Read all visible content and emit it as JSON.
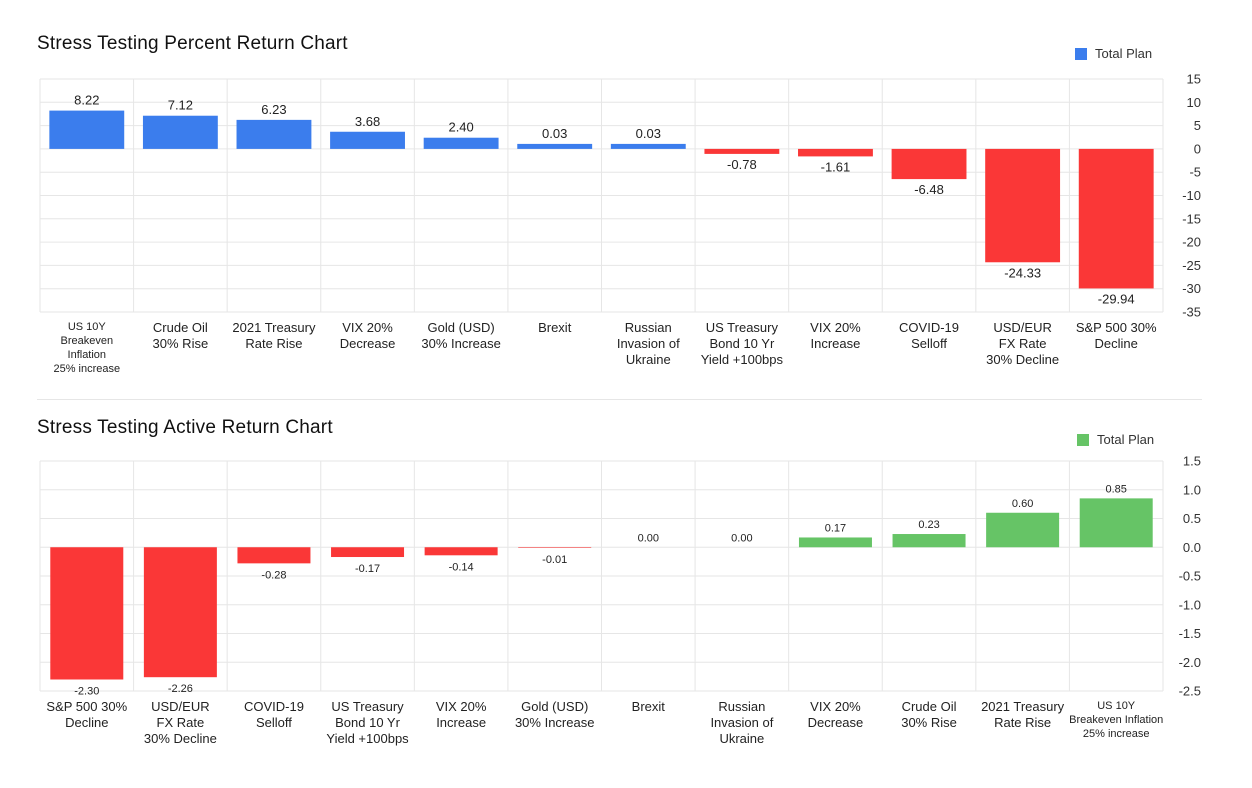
{
  "chart_data": [
    {
      "type": "bar",
      "title": "Stress Testing Percent Return Chart",
      "legend": {
        "label": "Total Plan",
        "position": "top-right"
      },
      "categories": [
        [
          "US 10Y",
          "Breakeven",
          "Inflation",
          "25% increase"
        ],
        [
          "Crude Oil",
          "30% Rise"
        ],
        [
          "2021 Treasury",
          "Rate Rise"
        ],
        [
          "VIX 20%",
          "Decrease"
        ],
        [
          "Gold (USD)",
          "30% Increase"
        ],
        [
          "Brexit"
        ],
        [
          "Russian",
          "Invasion of",
          "Ukraine"
        ],
        [
          "US Treasury",
          "Bond 10 Yr",
          "Yield +100bps"
        ],
        [
          "VIX 20%",
          "Increase"
        ],
        [
          "COVID-19",
          "Selloff"
        ],
        [
          "USD/EUR",
          "FX Rate",
          "30% Decline"
        ],
        [
          "S&P 500 30%",
          "Decline"
        ]
      ],
      "values": [
        8.22,
        7.12,
        6.23,
        3.68,
        2.4,
        0.03,
        0.03,
        -0.78,
        -1.61,
        -6.48,
        -24.33,
        -29.94
      ],
      "value_labels": [
        "8.22",
        "7.12",
        "6.23",
        "3.68",
        "2.40",
        "0.03",
        "0.03",
        "-0.78",
        "-1.61",
        "-6.48",
        "-24.33",
        "-29.94"
      ],
      "ylim": [
        -35,
        15
      ],
      "yticks": [
        15,
        10,
        5,
        0,
        -5,
        -10,
        -15,
        -20,
        -25,
        -30,
        -35
      ],
      "ytick_labels": [
        "15",
        "10",
        "5",
        "0",
        "-5",
        "-10",
        "-15",
        "-20",
        "-25",
        "-30",
        "-35"
      ],
      "y_axis_side": "right",
      "grid": true,
      "colors": {
        "positive": "#3b7ded",
        "negative": "#fa3737"
      },
      "xlabel": "",
      "ylabel": ""
    },
    {
      "type": "bar",
      "title": "Stress Testing Active Return Chart",
      "legend": {
        "label": "Total Plan",
        "position": "top-right"
      },
      "categories": [
        [
          "S&P 500 30%",
          "Decline"
        ],
        [
          "USD/EUR",
          "FX Rate",
          "30% Decline"
        ],
        [
          "COVID-19",
          "Selloff"
        ],
        [
          "US Treasury",
          "Bond 10 Yr",
          "Yield +100bps"
        ],
        [
          "VIX 20%",
          "Increase"
        ],
        [
          "Gold (USD)",
          "30% Increase"
        ],
        [
          "Brexit"
        ],
        [
          "Russian",
          "Invasion of",
          "Ukraine"
        ],
        [
          "VIX 20%",
          "Decrease"
        ],
        [
          "Crude Oil",
          "30% Rise"
        ],
        [
          "2021 Treasury",
          "Rate Rise"
        ],
        [
          "US 10Y",
          "Breakeven Inflation",
          "25% increase"
        ]
      ],
      "values": [
        -2.3,
        -2.26,
        -0.28,
        -0.17,
        -0.14,
        -0.01,
        0.0,
        0.0,
        0.17,
        0.23,
        0.6,
        0.85
      ],
      "value_labels": [
        "-2.30",
        "-2.26",
        "-0.28",
        "-0.17",
        "-0.14",
        "-0.01",
        "0.00",
        "0.00",
        "0.17",
        "0.23",
        "0.60",
        "0.85"
      ],
      "ylim": [
        -2.5,
        1.5
      ],
      "yticks": [
        1.5,
        1.0,
        0.5,
        0.0,
        -0.5,
        -1.0,
        -1.5,
        -2.0,
        -2.5
      ],
      "ytick_labels": [
        "1.5",
        "1.0",
        "0.5",
        "0.0",
        "-0.5",
        "-1.0",
        "-1.5",
        "-2.0",
        "-2.5"
      ],
      "y_axis_side": "right",
      "grid": true,
      "colors": {
        "positive": "#66c466",
        "negative": "#fa3737"
      },
      "xlabel": "",
      "ylabel": ""
    }
  ]
}
